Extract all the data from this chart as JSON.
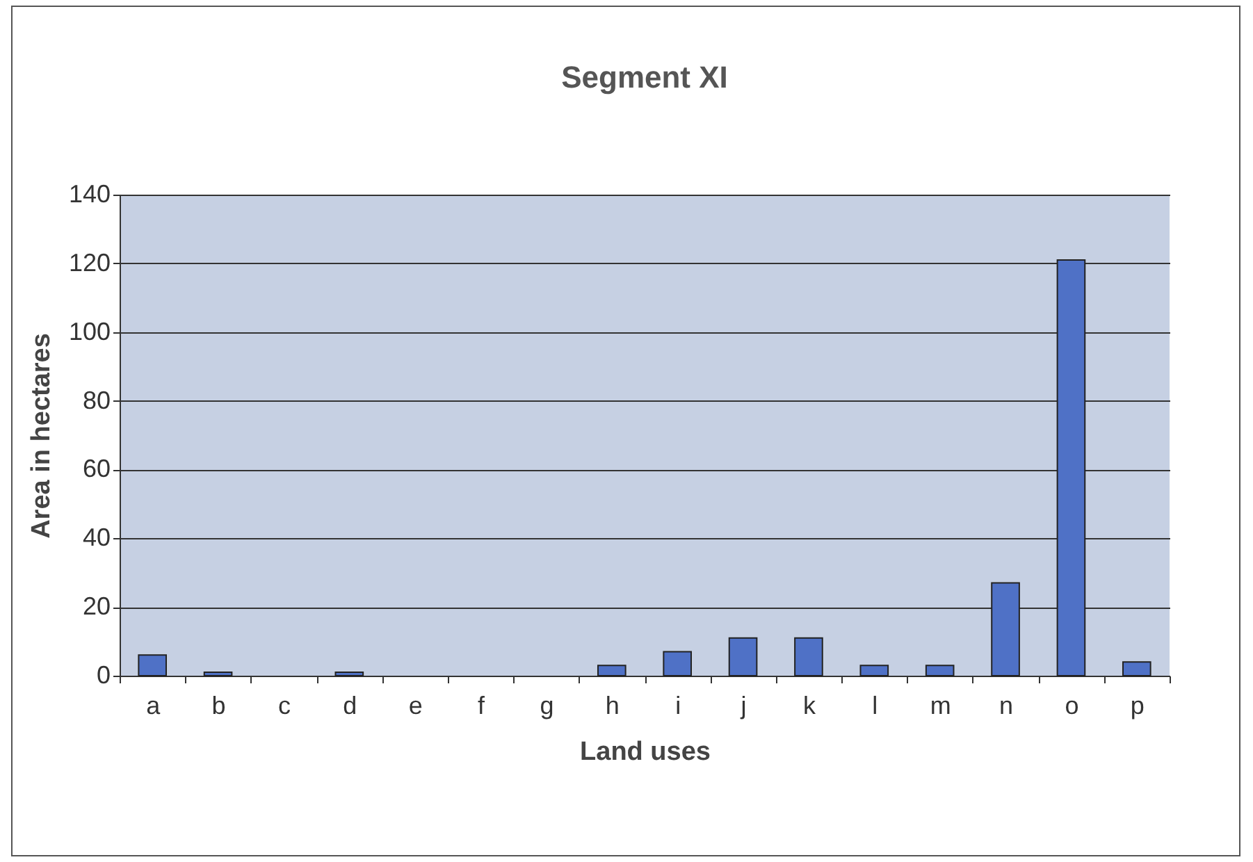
{
  "chart_data": {
    "type": "bar",
    "title": "Segment XI",
    "xlabel": "Land uses",
    "ylabel": "Area in hectares",
    "categories": [
      "a",
      "b",
      "c",
      "d",
      "e",
      "f",
      "g",
      "h",
      "i",
      "j",
      "k",
      "l",
      "m",
      "n",
      "o",
      "p"
    ],
    "values": [
      6,
      1,
      0,
      1,
      0,
      0,
      0,
      3,
      7,
      11,
      11,
      3,
      3,
      27,
      121,
      4
    ],
    "color": "#4f71c6",
    "ylim": [
      0,
      140
    ],
    "yticks": [
      0,
      20,
      40,
      60,
      80,
      100,
      120,
      140
    ],
    "grid": "y"
  }
}
